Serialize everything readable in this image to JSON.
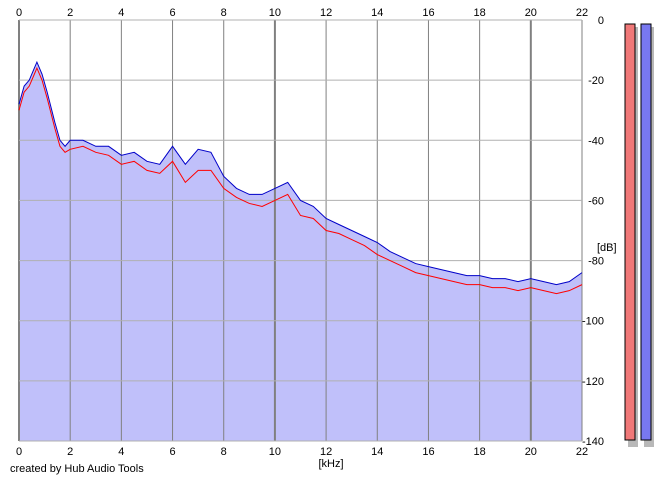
{
  "footer": {
    "credit": "created by Hub Audio Tools"
  },
  "chart_data": {
    "type": "area",
    "xlabel": "[kHz]",
    "ylabel": "[dB]",
    "xlim": [
      0,
      22
    ],
    "ylim": [
      -140,
      0
    ],
    "x_ticks": [
      0,
      2,
      4,
      6,
      8,
      10,
      12,
      14,
      16,
      18,
      20,
      22
    ],
    "y_ticks": [
      0,
      -20,
      -40,
      -60,
      -80,
      -100,
      -120,
      -140
    ],
    "grid": true,
    "fill_color": "#c0c0fa",
    "grid_color": "#b0b0b0",
    "series": [
      {
        "color": "#ff0000",
        "x": [
          0,
          0.2,
          0.4,
          0.6,
          0.7,
          0.9,
          1.1,
          1.4,
          1.6,
          1.8,
          2.0,
          2.5,
          3.0,
          3.5,
          4.0,
          4.5,
          5.0,
          5.5,
          6.0,
          6.5,
          7.0,
          7.5,
          8.0,
          8.5,
          9.0,
          9.5,
          10.0,
          10.5,
          11.0,
          11.5,
          12.0,
          12.5,
          13.0,
          13.5,
          14.0,
          14.5,
          15.0,
          15.5,
          16.0,
          16.5,
          17.0,
          17.5,
          18.0,
          18.5,
          19.0,
          19.5,
          20.0,
          20.5,
          21.0,
          21.5,
          22.0
        ],
        "values": [
          -30,
          -24,
          -22,
          -18,
          -16,
          -20,
          -26,
          -36,
          -42,
          -44,
          -43,
          -42,
          -44,
          -45,
          -48,
          -47,
          -50,
          -51,
          -47,
          -54,
          -50,
          -50,
          -56,
          -59,
          -61,
          -62,
          -60,
          -58,
          -65,
          -66,
          -70,
          -71,
          -73,
          -75,
          -78,
          -80,
          -82,
          -84,
          -85,
          -86,
          -87,
          -88,
          -88,
          -89,
          -89,
          -90,
          -89,
          -90,
          -91,
          -90,
          -88
        ]
      },
      {
        "color": "#0000c8",
        "x": [
          0,
          0.2,
          0.4,
          0.6,
          0.7,
          0.9,
          1.1,
          1.4,
          1.6,
          1.8,
          2.0,
          2.5,
          3.0,
          3.5,
          4.0,
          4.5,
          5.0,
          5.5,
          6.0,
          6.5,
          7.0,
          7.5,
          8.0,
          8.5,
          9.0,
          9.5,
          10.0,
          10.5,
          11.0,
          11.5,
          12.0,
          12.5,
          13.0,
          13.5,
          14.0,
          14.5,
          15.0,
          15.5,
          16.0,
          16.5,
          17.0,
          17.5,
          18.0,
          18.5,
          19.0,
          19.5,
          20.0,
          20.5,
          21.0,
          21.5,
          22.0
        ],
        "values": [
          -28,
          -22,
          -20,
          -16,
          -14,
          -18,
          -24,
          -34,
          -40,
          -42,
          -40,
          -40,
          -42,
          -42,
          -45,
          -44,
          -47,
          -48,
          -42,
          -48,
          -43,
          -44,
          -52,
          -56,
          -58,
          -58,
          -56,
          -54,
          -60,
          -62,
          -66,
          -68,
          -70,
          -72,
          -74,
          -77,
          -79,
          -81,
          -82,
          -83,
          -84,
          -85,
          -85,
          -86,
          -86,
          -87,
          -86,
          -87,
          -88,
          -87,
          -84
        ]
      }
    ],
    "meters": [
      {
        "color": "#f07878"
      },
      {
        "color": "#7878f0"
      }
    ]
  }
}
